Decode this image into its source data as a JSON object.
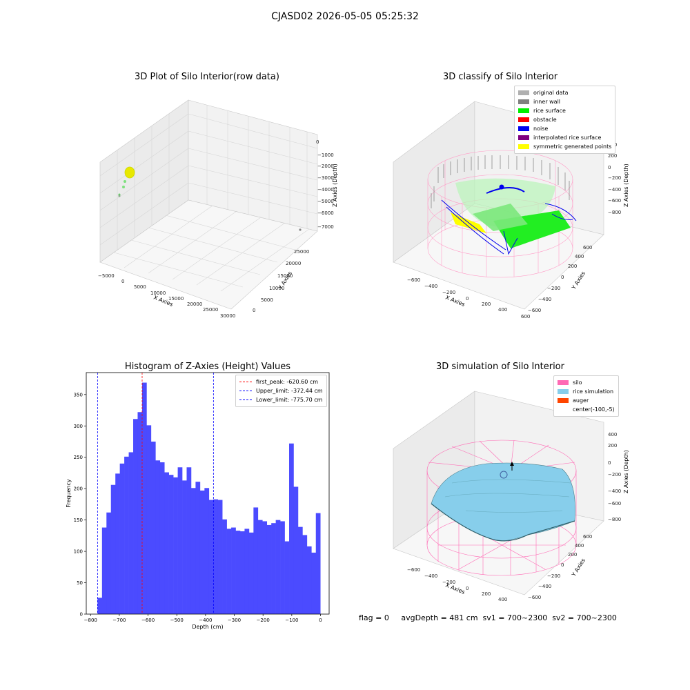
{
  "suptitle": "CJASD02 2026-05-05 05:25:32",
  "panel1": {
    "title": "3D Plot of Silo Interior(row data)",
    "xlabel": "X Axies",
    "ylabel": "Y Axies",
    "zlabel": "Z Axies (Depth)",
    "xticks": [
      "−5000",
      "0",
      "5000",
      "10000",
      "15000",
      "20000",
      "25000",
      "30000"
    ],
    "yticks": [
      "0",
      "5000",
      "10000",
      "15000",
      "20000",
      "25000"
    ],
    "zticks": [
      "0",
      "−1000",
      "−2000",
      "−3000",
      "−4000",
      "−5000",
      "−6000",
      "−7000"
    ]
  },
  "panel2": {
    "title": "3D classify of Silo Interior",
    "xlabel": "X Axies",
    "ylabel": "Y Axies",
    "zlabel": "Z Axies (Depth)",
    "xticks": [
      "−600",
      "−400",
      "−200",
      "0",
      "200",
      "400",
      "600"
    ],
    "yticks": [
      "−600",
      "−400",
      "−200",
      "0",
      "200",
      "400",
      "600"
    ],
    "zticks": [
      "200",
      "0",
      "−200",
      "−400",
      "−600",
      "−800"
    ],
    "legend": [
      {
        "label": "original data",
        "color": "#b0b0b0"
      },
      {
        "label": "inner wall",
        "color": "#808080"
      },
      {
        "label": "rice surface",
        "color": "#00ee00"
      },
      {
        "label": "obstacle",
        "color": "#ff0000"
      },
      {
        "label": "noise",
        "color": "#0000ee"
      },
      {
        "label": "interpolated rice surface",
        "color": "#800080"
      },
      {
        "label": "symmetric generated points",
        "color": "#ffff00"
      }
    ]
  },
  "panel3": {
    "title": "Histogram of Z-Axies (Height) Values",
    "legend": [
      {
        "label": "first_peak: -620.60 cm",
        "color": "#ff0000"
      },
      {
        "label": "Upper_limit: -372.44 cm",
        "color": "#0000ff"
      },
      {
        "label": "Lower_limit: -775.70 cm",
        "color": "#0000ff"
      }
    ]
  },
  "panel4": {
    "title": "3D simulation of Silo Interior",
    "xlabel": "X Axies",
    "ylabel": "Y Axies",
    "zlabel": "Z Axies (Depth)",
    "xticks": [
      "−600",
      "−400",
      "−200",
      "0",
      "200",
      "400"
    ],
    "yticks": [
      "−600",
      "−400",
      "−200",
      "0",
      "200",
      "400",
      "600"
    ],
    "zticks": [
      "400",
      "200",
      "0",
      "−200",
      "−400",
      "−600",
      "−800"
    ],
    "legend": [
      {
        "label": "silo",
        "color": "#ff69b4"
      },
      {
        "label": "rice simulation",
        "color": "#87ceeb"
      },
      {
        "label": "auger",
        "color": "#ff4500"
      },
      {
        "label": "center(-100,-5)",
        "color": ""
      }
    ]
  },
  "footer": "flag = 0     avgDepth = 481 cm  sv1 = 700~2300  sv2 = 700~2300",
  "chart_data": [
    {
      "type": "bar",
      "title": "Histogram of Z-Axies (Height) Values",
      "xlabel": "Depth (cm)",
      "ylabel": "Frequency",
      "xlim": [
        -815,
        30
      ],
      "ylim": [
        0,
        385
      ],
      "xticks": [
        -800,
        -700,
        -600,
        -500,
        -400,
        -300,
        -200,
        -100,
        0
      ],
      "yticks": [
        0,
        50,
        100,
        150,
        200,
        250,
        300,
        350
      ],
      "bin_start": -775.7,
      "bin_width": 15.5,
      "values": [
        26,
        138,
        162,
        206,
        224,
        240,
        251,
        258,
        311,
        322,
        369,
        301,
        275,
        245,
        242,
        226,
        222,
        218,
        234,
        213,
        234,
        201,
        211,
        197,
        201,
        182,
        183,
        182,
        151,
        136,
        138,
        133,
        132,
        136,
        130,
        170,
        150,
        148,
        142,
        145,
        150,
        148,
        116,
        272,
        203,
        139,
        126,
        108,
        98,
        161
      ],
      "color": "#4b4bff",
      "lines": [
        {
          "label": "first_peak: -620.60 cm",
          "x": -620.6,
          "color": "#ff0000"
        },
        {
          "label": "Upper_limit: -372.44 cm",
          "x": -372.44,
          "color": "#0000ff"
        },
        {
          "label": "Lower_limit: -775.70 cm",
          "x": -775.7,
          "color": "#0000ff"
        }
      ]
    }
  ]
}
